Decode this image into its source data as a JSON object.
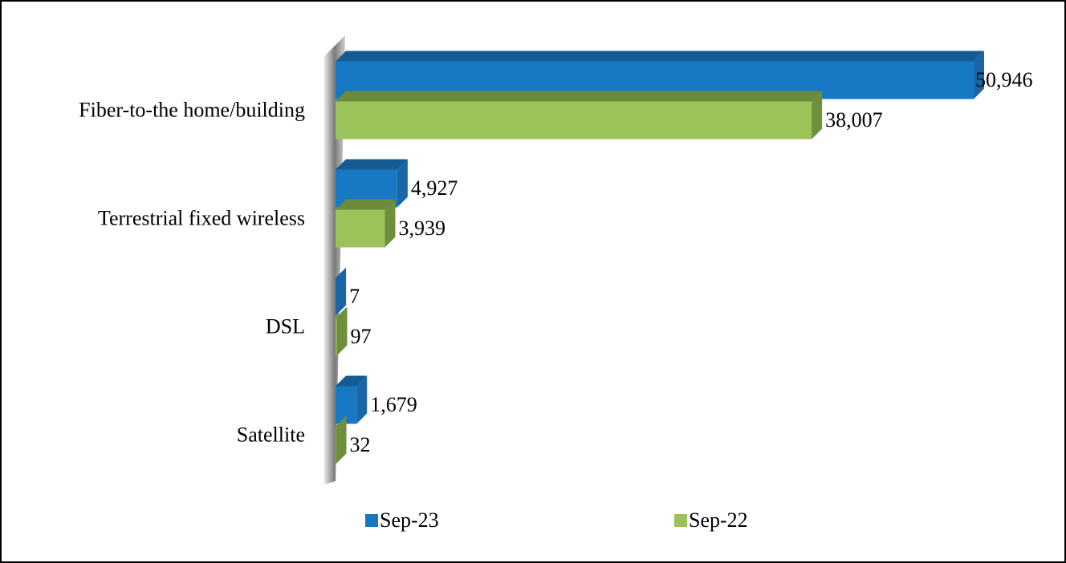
{
  "chart_data": {
    "type": "bar",
    "orientation": "horizontal",
    "categories": [
      "Fiber-to-the home/building",
      "Terrestrial fixed wireless",
      "DSL",
      "Satellite"
    ],
    "series": [
      {
        "name": "Sep-23",
        "color": "#1778c4",
        "values": [
          50946,
          4927,
          7,
          1679
        ],
        "value_labels": [
          "50,946",
          "4,927",
          "7",
          "1,679"
        ]
      },
      {
        "name": "Sep-22",
        "color": "#9bc359",
        "values": [
          38007,
          3939,
          97,
          32
        ],
        "value_labels": [
          "38,007",
          "3,939",
          "97",
          "32"
        ]
      }
    ],
    "legend": "bottom"
  }
}
